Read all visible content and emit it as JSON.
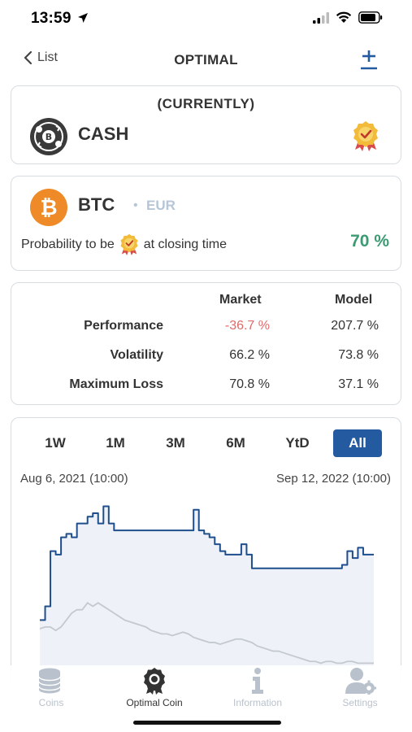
{
  "status_bar": {
    "time": "13:59"
  },
  "nav": {
    "back_label": "List",
    "title": "OPTIMAL"
  },
  "current_card": {
    "label": "(CURRENTLY)",
    "asset": "CASH"
  },
  "btc_card": {
    "symbol": "BTC",
    "separator": "•",
    "currency": "EUR",
    "prob_prefix": "Probability to be",
    "prob_suffix": "at closing time",
    "prob_value": "70 %"
  },
  "stats": {
    "headers": {
      "market": "Market",
      "model": "Model"
    },
    "rows": [
      {
        "label": "Performance",
        "market": "-36.7 %",
        "model": "207.7 %"
      },
      {
        "label": "Volatility",
        "market": "66.2 %",
        "model": "73.8 %"
      },
      {
        "label": "Maximum Loss",
        "market": "70.8 %",
        "model": "37.1 %"
      }
    ]
  },
  "chart": {
    "ranges": [
      "1W",
      "1M",
      "3M",
      "6M",
      "YtD",
      "All"
    ],
    "active_range": "All",
    "date_start": "Aug 6, 2021 (10:00)",
    "date_end": "Sep 12, 2022 (10:00)"
  },
  "chart_data": {
    "type": "line",
    "title": "",
    "xlabel": "",
    "ylabel": "",
    "x_range": [
      "Aug 6, 2021 (10:00)",
      "Sep 12, 2022 (10:00)"
    ],
    "grid": false,
    "legend": "none",
    "series": [
      {
        "values": [
          0.3,
          0.38,
          0.7,
          0.68,
          0.78,
          0.8,
          0.78,
          0.86,
          0.86,
          0.9,
          0.92,
          0.86,
          0.96,
          0.86,
          0.82,
          0.82,
          0.82,
          0.82,
          0.82,
          0.82,
          0.82,
          0.82,
          0.82,
          0.82,
          0.82,
          0.82,
          0.82,
          0.82,
          0.82,
          0.94,
          0.82,
          0.8,
          0.78,
          0.74,
          0.7,
          0.68,
          0.68,
          0.68,
          0.74,
          0.68,
          0.6,
          0.6,
          0.6,
          0.6,
          0.6,
          0.6,
          0.6,
          0.6,
          0.6,
          0.6,
          0.6,
          0.6,
          0.6,
          0.6,
          0.6,
          0.6,
          0.6,
          0.62,
          0.7,
          0.66,
          0.72,
          0.68,
          0.68,
          0.68
        ],
        "color": "#1e4f8c"
      },
      {
        "values": [
          0.25,
          0.26,
          0.26,
          0.24,
          0.26,
          0.3,
          0.34,
          0.36,
          0.36,
          0.4,
          0.38,
          0.4,
          0.38,
          0.36,
          0.34,
          0.32,
          0.3,
          0.29,
          0.28,
          0.27,
          0.26,
          0.24,
          0.23,
          0.22,
          0.22,
          0.21,
          0.22,
          0.23,
          0.22,
          0.2,
          0.19,
          0.18,
          0.17,
          0.17,
          0.16,
          0.17,
          0.18,
          0.19,
          0.19,
          0.18,
          0.17,
          0.15,
          0.14,
          0.13,
          0.12,
          0.12,
          0.11,
          0.1,
          0.09,
          0.08,
          0.07,
          0.06,
          0.06,
          0.05,
          0.06,
          0.06,
          0.05,
          0.05,
          0.06,
          0.06,
          0.05,
          0.05,
          0.05,
          0.05
        ],
        "color": "#c3c9cf"
      }
    ]
  },
  "tab_bar": {
    "items": [
      {
        "label": "Coins",
        "icon": "coins-icon",
        "active": false
      },
      {
        "label": "Optimal Coin",
        "icon": "badge-icon",
        "active": true
      },
      {
        "label": "Information",
        "icon": "info-icon",
        "active": false
      },
      {
        "label": "Settings",
        "icon": "user-settings-icon",
        "active": false
      }
    ]
  },
  "colors": {
    "accent": "#245aa0",
    "positive": "#3d9a72",
    "negative": "#e06a6a",
    "btc_orange": "#ee8a27"
  }
}
